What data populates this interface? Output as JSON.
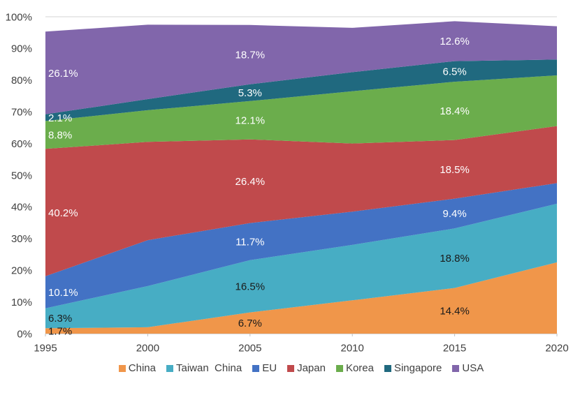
{
  "chart_data": {
    "type": "area",
    "stacked": true,
    "title": "",
    "xlabel": "",
    "ylabel": "",
    "unit": "%",
    "ylim": [
      0,
      100
    ],
    "grid": "top-line-only",
    "legend_position": "bottom",
    "x": [
      1995,
      2000,
      2005,
      2010,
      2015,
      2020
    ],
    "x_tick_labels": [
      "1995",
      "2000",
      "2005",
      "2010",
      "2015",
      "2020"
    ],
    "y_tick_labels": [
      "0%",
      "10%",
      "20%",
      "30%",
      "40%",
      "50%",
      "60%",
      "70%",
      "80%",
      "90%",
      "100%"
    ],
    "series": [
      {
        "name": "China",
        "color": "#F0964A",
        "values": [
          1.7,
          2.0,
          6.7,
          10.5,
          14.4,
          22.5
        ]
      },
      {
        "name": "Taiwan China",
        "color": "#47ADC4",
        "values": [
          6.3,
          13.0,
          16.5,
          17.5,
          18.8,
          18.5
        ]
      },
      {
        "name": "EU",
        "color": "#4372C4",
        "values": [
          10.1,
          14.5,
          11.7,
          10.5,
          9.4,
          6.5
        ]
      },
      {
        "name": "Japan",
        "color": "#C04A4C",
        "values": [
          40.2,
          31.0,
          26.4,
          21.5,
          18.5,
          18.0
        ]
      },
      {
        "name": "Korea",
        "color": "#6BAD4C",
        "values": [
          8.8,
          10.0,
          12.1,
          16.5,
          18.4,
          16.0
        ]
      },
      {
        "name": "Singapore",
        "color": "#20697F",
        "values": [
          2.1,
          3.5,
          5.3,
          6.0,
          6.5,
          5.0
        ]
      },
      {
        "name": "USA",
        "color": "#8166AB",
        "values": [
          26.1,
          23.5,
          18.7,
          14.0,
          12.6,
          10.5
        ]
      }
    ],
    "value_labels": [
      {
        "year": 1995,
        "series": "China",
        "text": "1.7%",
        "color": "#1a1a1a"
      },
      {
        "year": 1995,
        "series": "Taiwan China",
        "text": "6.3%",
        "color": "#1a1a1a"
      },
      {
        "year": 1995,
        "series": "EU",
        "text": "10.1%",
        "color": "#ffffff"
      },
      {
        "year": 1995,
        "series": "Japan",
        "text": "40.2%",
        "color": "#ffffff"
      },
      {
        "year": 1995,
        "series": "Korea",
        "text": "8.8%",
        "color": "#ffffff"
      },
      {
        "year": 1995,
        "series": "Singapore",
        "text": "2.1%",
        "color": "#ffffff"
      },
      {
        "year": 1995,
        "series": "USA",
        "text": "26.1%",
        "color": "#ffffff"
      },
      {
        "year": 2005,
        "series": "China",
        "text": "6.7%",
        "color": "#1a1a1a"
      },
      {
        "year": 2005,
        "series": "Taiwan China",
        "text": "16.5%",
        "color": "#1a1a1a"
      },
      {
        "year": 2005,
        "series": "EU",
        "text": "11.7%",
        "color": "#ffffff"
      },
      {
        "year": 2005,
        "series": "Japan",
        "text": "26.4%",
        "color": "#ffffff"
      },
      {
        "year": 2005,
        "series": "Korea",
        "text": "12.1%",
        "color": "#ffffff"
      },
      {
        "year": 2005,
        "series": "Singapore",
        "text": "5.3%",
        "color": "#ffffff"
      },
      {
        "year": 2005,
        "series": "USA",
        "text": "18.7%",
        "color": "#ffffff"
      },
      {
        "year": 2015,
        "series": "China",
        "text": "14.4%",
        "color": "#1a1a1a"
      },
      {
        "year": 2015,
        "series": "Taiwan China",
        "text": "18.8%",
        "color": "#1a1a1a"
      },
      {
        "year": 2015,
        "series": "EU",
        "text": "9.4%",
        "color": "#ffffff"
      },
      {
        "year": 2015,
        "series": "Japan",
        "text": "18.5%",
        "color": "#ffffff"
      },
      {
        "year": 2015,
        "series": "Korea",
        "text": "18.4%",
        "color": "#ffffff"
      },
      {
        "year": 2015,
        "series": "Singapore",
        "text": "6.5%",
        "color": "#ffffff"
      },
      {
        "year": 2015,
        "series": "USA",
        "text": "12.6%",
        "color": "#ffffff"
      }
    ]
  },
  "legend": {
    "items": [
      {
        "label": "China",
        "color": "#F0964A"
      },
      {
        "label": "Taiwan  China",
        "color": "#47ADC4"
      },
      {
        "label": "EU",
        "color": "#4372C4"
      },
      {
        "label": "Japan",
        "color": "#C04A4C"
      },
      {
        "label": "Korea",
        "color": "#6BAD4C"
      },
      {
        "label": "Singapore",
        "color": "#20697F"
      },
      {
        "label": "USA",
        "color": "#8166AB"
      }
    ]
  },
  "colors": {
    "axis_text": "#404040",
    "gridline": "#dcdcdc",
    "axis_line": "#d6d6d6",
    "tick_mark": "#bfbfbf",
    "background": "#ffffff"
  }
}
